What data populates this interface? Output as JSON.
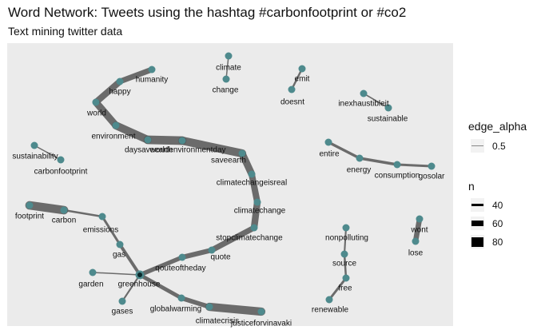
{
  "title": "Word Network: Tweets using the hashtag #carbonfootprint or #co2",
  "subtitle": "Text mining twitter data",
  "colors": {
    "panel_bg": "#ebebeb",
    "edge": "#555555",
    "node": "#4e8a8d",
    "label": "#111111"
  },
  "legend": {
    "alpha_title": "edge_alpha",
    "alpha_value": "0.5",
    "n_title": "n",
    "n_values": [
      "40",
      "60",
      "80"
    ]
  },
  "chart_data": {
    "type": "network",
    "title": "Word Network: Tweets using the hashtag #carbonfootprint or #co2",
    "subtitle": "Text mining twitter data",
    "nodes": [
      "humanity",
      "happy",
      "world",
      "environment",
      "daysaveearth",
      "worldenvironmentday",
      "saveearth",
      "climatechangeisreal",
      "climatechange",
      "stopclimatechange",
      "quote",
      "qouteoftheday",
      "greenhouse",
      "gas",
      "emissions",
      "carbon",
      "footprint",
      "garden",
      "gases",
      "globalwarming",
      "climatecrisis",
      "justiceforvinavaki",
      "climate",
      "change",
      "emit",
      "doesnt",
      "inexhaustibleit",
      "sustainable",
      "sustainability",
      "carbonfootprint",
      "entire",
      "energy",
      "consumption",
      "gosolar",
      "nonpolluting",
      "source",
      "free",
      "renewable",
      "wont",
      "lose"
    ],
    "edges": [
      {
        "from": "humanity",
        "to": "happy",
        "n": 58
      },
      {
        "from": "happy",
        "to": "world",
        "n": 62
      },
      {
        "from": "world",
        "to": "environment",
        "n": 66
      },
      {
        "from": "environment",
        "to": "daysaveearth",
        "n": 70
      },
      {
        "from": "daysaveearth",
        "to": "worldenvironmentday",
        "n": 74
      },
      {
        "from": "worldenvironmentday",
        "to": "saveearth",
        "n": 72
      },
      {
        "from": "saveearth",
        "to": "climatechangeisreal",
        "n": 66
      },
      {
        "from": "climatechangeisreal",
        "to": "climatechange",
        "n": 62
      },
      {
        "from": "climatechange",
        "to": "stopclimatechange",
        "n": 64
      },
      {
        "from": "stopclimatechange",
        "to": "quote",
        "n": 58
      },
      {
        "from": "quote",
        "to": "qouteoftheday",
        "n": 54
      },
      {
        "from": "qouteoftheday",
        "to": "greenhouse",
        "n": 50
      },
      {
        "from": "greenhouse",
        "to": "gas",
        "n": 44
      },
      {
        "from": "gas",
        "to": "emissions",
        "n": 40
      },
      {
        "from": "emissions",
        "to": "carbon",
        "n": 38
      },
      {
        "from": "carbon",
        "to": "footprint",
        "n": 74
      },
      {
        "from": "greenhouse",
        "to": "garden",
        "n": 30
      },
      {
        "from": "greenhouse",
        "to": "gases",
        "n": 36
      },
      {
        "from": "greenhouse",
        "to": "globalwarming",
        "n": 48
      },
      {
        "from": "globalwarming",
        "to": "climatecrisis",
        "n": 52
      },
      {
        "from": "climatecrisis",
        "to": "justiceforvinavaki",
        "n": 72
      },
      {
        "from": "climate",
        "to": "change",
        "n": 30
      },
      {
        "from": "emit",
        "to": "doesnt",
        "n": 38
      },
      {
        "from": "inexhaustibleit",
        "to": "sustainable",
        "n": 34
      },
      {
        "from": "sustainability",
        "to": "carbonfootprint",
        "n": 28
      },
      {
        "from": "entire",
        "to": "energy",
        "n": 42
      },
      {
        "from": "energy",
        "to": "consumption",
        "n": 42
      },
      {
        "from": "consumption",
        "to": "gosolar",
        "n": 40
      },
      {
        "from": "nonpolluting",
        "to": "source",
        "n": 36
      },
      {
        "from": "source",
        "to": "free",
        "n": 38
      },
      {
        "from": "free",
        "to": "renewable",
        "n": 40
      },
      {
        "from": "wont",
        "to": "lose",
        "n": 56
      }
    ],
    "legend": {
      "edge_alpha": [
        0.5
      ],
      "n": [
        40,
        60,
        80
      ]
    }
  }
}
